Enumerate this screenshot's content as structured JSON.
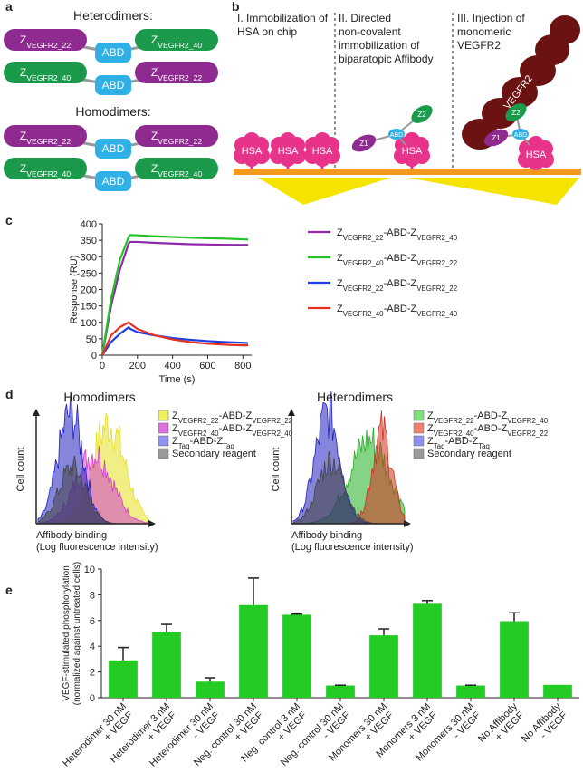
{
  "panel_a": {
    "letter": "a",
    "heterodimers_title": "Heterodimers:",
    "homodimers_title": "Homodimers:",
    "heterodimers": [
      [
        "ZVEGFR2_22",
        "ABD",
        "ZVEGFR2_40"
      ],
      [
        "ZVEGFR2_40",
        "ABD",
        "ZVEGFR2_22"
      ]
    ],
    "homodimers": [
      [
        "ZVEGFR2_22",
        "ABD",
        "ZVEGFR2_22"
      ],
      [
        "ZVEGFR2_40",
        "ABD",
        "ZVEGFR2_40"
      ]
    ]
  },
  "panel_b": {
    "letter": "b",
    "steps": [
      [
        "I. Immobilization of",
        "HSA on chip"
      ],
      [
        "II. Directed",
        "non-covalent",
        "immobilization of",
        "biparatopic Affibody"
      ],
      [
        "III. Injection of",
        "monomeric",
        "VEGFR2"
      ]
    ],
    "hsa": "HSA",
    "abd": "ABD",
    "z1": "Z1",
    "z2": "Z2",
    "vegfr2": "VEGFR2"
  },
  "panel_d": {
    "letter": "d",
    "plots": [
      {
        "title": "Homodimers",
        "ylabel": "Cell count",
        "xlabel": [
          "Affibody binding",
          "(Log fluorescence intensity)"
        ],
        "legend": [
          {
            "name": "ZVEGFR2_22-ABD-ZVEGFR2_22",
            "color": "#f0f060"
          },
          {
            "name": "ZVEGFR2_40-ABD-ZVEGFR2_40",
            "color": "#e070e0"
          },
          {
            "name": "ZTaq-ABD-ZTaq",
            "color": "#9090f0"
          },
          {
            "name": "Secondary reagent",
            "color": "#999999"
          }
        ]
      },
      {
        "title": "Heterodimers",
        "ylabel": "Cell count",
        "xlabel": [
          "Affibody binding",
          "(Log fluorescence intensity)"
        ],
        "legend": [
          {
            "name": "ZVEGFR2_22-ABD-ZVEGFR2_40",
            "color": "#80e080"
          },
          {
            "name": "ZVEGFR2_40-ABD-ZVEGFR2_22",
            "color": "#f08070"
          },
          {
            "name": "ZTaq-ABD-ZTaq",
            "color": "#9090f0"
          },
          {
            "name": "Secondary reagent",
            "color": "#999999"
          }
        ]
      }
    ]
  },
  "chart_data": [
    {
      "type": "line",
      "label": "c",
      "xlabel": "Time (s)",
      "ylabel": "Response (RU)",
      "x": [
        0,
        50,
        100,
        150,
        160,
        200,
        300,
        400,
        500,
        600,
        700,
        800,
        830
      ],
      "series": [
        {
          "name": "ZVEGFR2_22-ABD-ZVEGFR2_40",
          "color": "#8e2aa8",
          "values": [
            0,
            150,
            260,
            340,
            345,
            345,
            342,
            340,
            338,
            337,
            336,
            336,
            336
          ]
        },
        {
          "name": "ZVEGFR2_40-ABD-ZVEGFR2_22",
          "color": "#22c322",
          "values": [
            0,
            170,
            290,
            360,
            366,
            365,
            362,
            360,
            358,
            356,
            355,
            353,
            352
          ]
        },
        {
          "name": "ZVEGFR2_22-ABD-ZVEGFR2_22",
          "color": "#1e3ee0",
          "values": [
            0,
            40,
            65,
            85,
            80,
            70,
            60,
            52,
            47,
            43,
            40,
            38,
            37
          ]
        },
        {
          "name": "ZVEGFR2_40-ABD-ZVEGFR2_40",
          "color": "#e83020",
          "values": [
            0,
            60,
            85,
            100,
            95,
            80,
            60,
            48,
            40,
            35,
            32,
            30,
            30
          ]
        }
      ],
      "xlim": [
        0,
        850
      ],
      "ylim": [
        0,
        400
      ],
      "xticks": [
        0,
        200,
        400,
        600,
        800
      ],
      "yticks": [
        0,
        50,
        100,
        150,
        200,
        250,
        300,
        350,
        400
      ]
    },
    {
      "type": "bar",
      "label": "e",
      "ylabel": [
        "VEGF-stimulated phosphorylation",
        "(normalized against untreated cells)"
      ],
      "categories": [
        [
          "Heterodimer 30 nM",
          "+ VEGF"
        ],
        [
          "Heterodimer 3 nM",
          "+ VEGF"
        ],
        [
          "Heterodimer 30 nM",
          "- VEGF"
        ],
        [
          "Neg. control 30 nM",
          "+ VEGF"
        ],
        [
          "Neg. control 3 nM",
          "+ VEGF"
        ],
        [
          "Neg. control 30 nM",
          "- VEGF"
        ],
        [
          "Monomers 30 nM",
          "+ VEGF"
        ],
        [
          "Monomers 3 nM",
          "+ VEGF"
        ],
        [
          "Monomers 30 nM",
          "- VEGF"
        ],
        [
          "No Affibody",
          "+ VEGF"
        ],
        [
          "No Affibody",
          "- VEGF"
        ]
      ],
      "values": [
        2.9,
        5.1,
        1.25,
        7.2,
        6.45,
        0.95,
        4.85,
        7.3,
        0.95,
        5.95,
        1.0
      ],
      "errors": [
        1.0,
        0.6,
        0.3,
        2.1,
        0.05,
        0.02,
        0.5,
        0.25,
        0.02,
        0.65,
        null
      ],
      "color": "#22cc22",
      "ylim": [
        0,
        10
      ],
      "yticks": [
        0,
        2,
        4,
        6,
        8,
        10
      ]
    }
  ]
}
